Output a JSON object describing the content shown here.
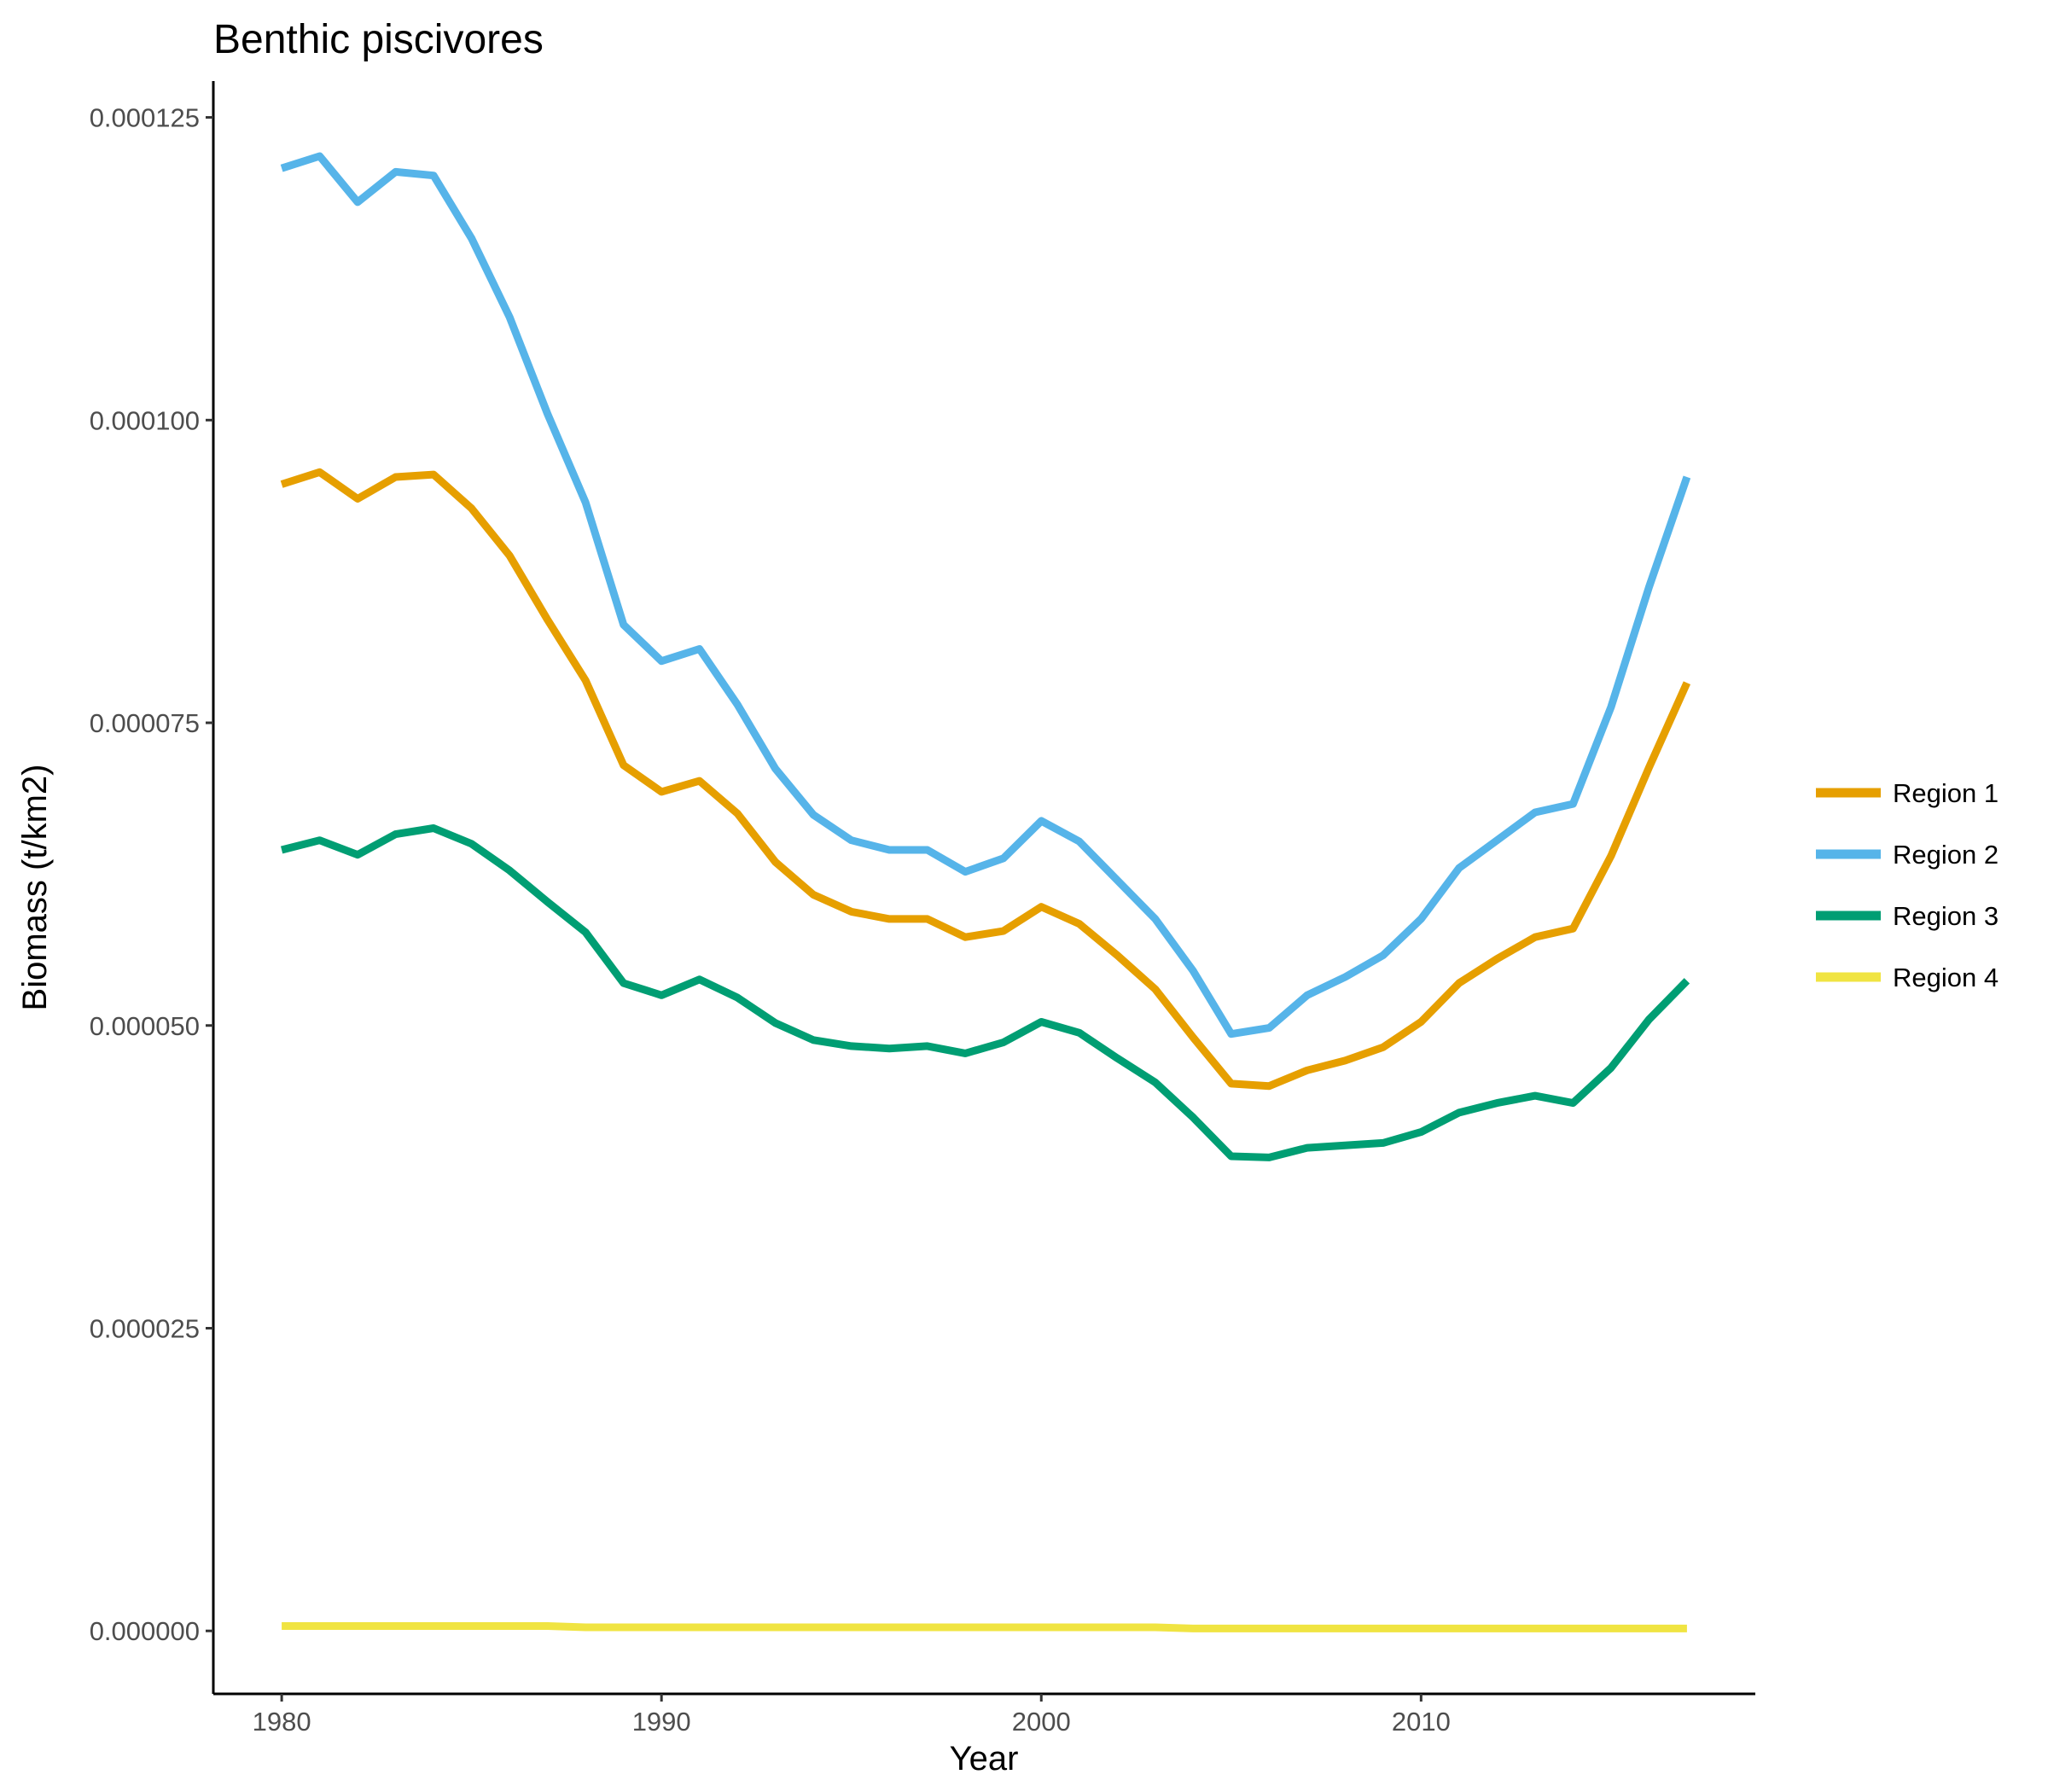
{
  "chart_data": {
    "type": "line",
    "title": "Benthic piscivores",
    "xlabel": "Year",
    "ylabel": "Biomass (t/km2)",
    "xlim": [
      1978.2,
      2018.8
    ],
    "ylim": [
      -5.2e-06,
      0.000128
    ],
    "x_ticks": [
      1980,
      1990,
      2000,
      2010
    ],
    "y_ticks": [
      0.0,
      2.5e-05,
      5e-05,
      7.5e-05,
      0.0001,
      0.000125
    ],
    "y_tick_labels": [
      "0.000000",
      "0.000025",
      "0.000050",
      "0.000075",
      "0.000100",
      "0.000125"
    ],
    "grid": false,
    "legend_position": "right",
    "x": [
      1980,
      1981,
      1982,
      1983,
      1984,
      1985,
      1986,
      1987,
      1988,
      1989,
      1990,
      1991,
      1992,
      1993,
      1994,
      1995,
      1996,
      1997,
      1998,
      1999,
      2000,
      2001,
      2002,
      2003,
      2004,
      2005,
      2006,
      2007,
      2008,
      2009,
      2010,
      2011,
      2012,
      2013,
      2014,
      2015,
      2016,
      2017
    ],
    "series": [
      {
        "name": "Region 1",
        "color": "#E69F00",
        "values": [
          9.47e-05,
          9.57e-05,
          9.35e-05,
          9.53e-05,
          9.55e-05,
          9.27e-05,
          8.88e-05,
          8.35e-05,
          7.85e-05,
          7.15e-05,
          6.93e-05,
          7.02e-05,
          6.75e-05,
          6.35e-05,
          6.08e-05,
          5.94e-05,
          5.88e-05,
          5.88e-05,
          5.73e-05,
          5.78e-05,
          5.98e-05,
          5.84e-05,
          5.58e-05,
          5.3e-05,
          4.9e-05,
          4.52e-05,
          4.5e-05,
          4.63e-05,
          4.71e-05,
          4.82e-05,
          5.03e-05,
          5.35e-05,
          5.55e-05,
          5.73e-05,
          5.8e-05,
          6.4e-05,
          7.13e-05,
          7.83e-05
        ]
      },
      {
        "name": "Region 2",
        "color": "#56B4E9",
        "values": [
          0.0001208,
          0.0001218,
          0.000118,
          0.0001205,
          0.0001202,
          0.000115,
          0.0001085,
          0.0001005,
          9.32e-05,
          8.31e-05,
          8.01e-05,
          8.11e-05,
          7.65e-05,
          7.12e-05,
          6.74e-05,
          6.53e-05,
          6.45e-05,
          6.45e-05,
          6.27e-05,
          6.38e-05,
          6.69e-05,
          6.52e-05,
          6.2e-05,
          5.88e-05,
          5.45e-05,
          4.93e-05,
          4.98e-05,
          5.25e-05,
          5.4e-05,
          5.58e-05,
          5.88e-05,
          6.3e-05,
          6.53e-05,
          6.76e-05,
          6.83e-05,
          7.63e-05,
          8.62e-05,
          9.53e-05
        ]
      },
      {
        "name": "Region 3",
        "color": "#009E73",
        "values": [
          6.45e-05,
          6.53e-05,
          6.41e-05,
          6.58e-05,
          6.63e-05,
          6.5e-05,
          6.28e-05,
          6.02e-05,
          5.77e-05,
          5.35e-05,
          5.25e-05,
          5.38e-05,
          5.23e-05,
          5.02e-05,
          4.88e-05,
          4.83e-05,
          4.81e-05,
          4.83e-05,
          4.77e-05,
          4.86e-05,
          5.03e-05,
          4.94e-05,
          4.73e-05,
          4.53e-05,
          4.24e-05,
          3.92e-05,
          3.91e-05,
          3.99e-05,
          4.01e-05,
          4.03e-05,
          4.12e-05,
          4.28e-05,
          4.36e-05,
          4.42e-05,
          4.36e-05,
          4.65e-05,
          5.05e-05,
          5.37e-05
        ]
      },
      {
        "name": "Region 4",
        "color": "#F0E442",
        "values": [
          4e-07,
          4e-07,
          4e-07,
          4e-07,
          4e-07,
          4e-07,
          4e-07,
          4e-07,
          3e-07,
          3e-07,
          3e-07,
          3e-07,
          3e-07,
          3e-07,
          3e-07,
          3e-07,
          3e-07,
          3e-07,
          3e-07,
          3e-07,
          3e-07,
          3e-07,
          3e-07,
          3e-07,
          2e-07,
          2e-07,
          2e-07,
          2e-07,
          2e-07,
          2e-07,
          2e-07,
          2e-07,
          2e-07,
          2e-07,
          2e-07,
          2e-07,
          2e-07,
          2e-07
        ]
      }
    ]
  }
}
